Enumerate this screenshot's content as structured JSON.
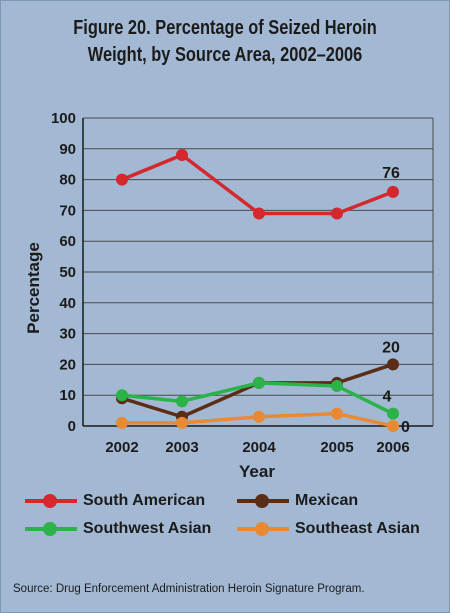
{
  "title_lines": [
    "Figure 20. Percentage of Seized Heroin",
    "Weight, by Source Area, 2002–2006"
  ],
  "source": "Source: Drug Enforcement Administration Heroin Signature Program.",
  "chart_data": {
    "type": "line",
    "title": "Figure 20. Percentage of Seized Heroin Weight, by Source Area, 2002–2006",
    "xlabel": "Year",
    "ylabel": "Percentage",
    "x": [
      "2002",
      "2003",
      "2004",
      "2005",
      "2006"
    ],
    "yticks": [
      "0",
      "10",
      "20",
      "30",
      "40",
      "50",
      "60",
      "70",
      "80",
      "90",
      "100"
    ],
    "ylim": [
      0,
      100
    ],
    "grid": true,
    "legend_position": "bottom",
    "series": [
      {
        "name": "South American",
        "color": "#d4272e",
        "values": [
          80,
          88,
          69,
          69,
          76
        ]
      },
      {
        "name": "Mexican",
        "color": "#5a2d17",
        "values": [
          9,
          3,
          14,
          14,
          20
        ]
      },
      {
        "name": "Southwest Asian",
        "color": "#2bb34a",
        "values": [
          10,
          8,
          14,
          13,
          4
        ]
      },
      {
        "name": "Southeast Asian",
        "color": "#e88a33",
        "values": [
          1,
          1,
          3,
          4,
          0
        ]
      }
    ],
    "annotations": [
      {
        "text": "76",
        "series": 0,
        "index": 4
      },
      {
        "text": "20",
        "series": 1,
        "index": 4
      },
      {
        "text": "4",
        "series": 2,
        "index": 4
      },
      {
        "text": "0",
        "series": 3,
        "index": 4
      }
    ]
  }
}
